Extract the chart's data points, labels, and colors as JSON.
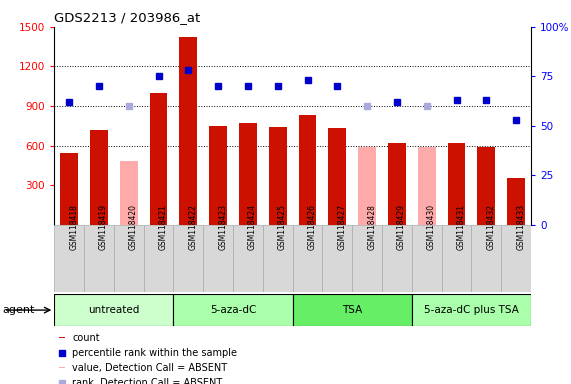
{
  "title": "GDS2213 / 203986_at",
  "samples": [
    "GSM118418",
    "GSM118419",
    "GSM118420",
    "GSM118421",
    "GSM118422",
    "GSM118423",
    "GSM118424",
    "GSM118425",
    "GSM118426",
    "GSM118427",
    "GSM118428",
    "GSM118429",
    "GSM118430",
    "GSM118431",
    "GSM118432",
    "GSM118433"
  ],
  "bar_values": [
    540,
    720,
    480,
    1000,
    1420,
    750,
    770,
    740,
    830,
    730,
    590,
    620,
    590,
    620,
    590,
    350
  ],
  "bar_absent": [
    false,
    false,
    true,
    false,
    false,
    false,
    false,
    false,
    false,
    false,
    true,
    false,
    true,
    false,
    false,
    false
  ],
  "percentile_values": [
    62,
    70,
    60,
    75,
    78,
    70,
    70,
    70,
    73,
    70,
    60,
    62,
    60,
    63,
    63,
    53
  ],
  "rank_absent": [
    false,
    false,
    true,
    false,
    false,
    false,
    false,
    false,
    false,
    false,
    true,
    false,
    true,
    false,
    false,
    false
  ],
  "ylim_left": [
    0,
    1500
  ],
  "ylim_right": [
    0,
    100
  ],
  "yticks_left": [
    300,
    600,
    900,
    1200,
    1500
  ],
  "yticks_right": [
    0,
    25,
    50,
    75,
    100
  ],
  "groups": [
    {
      "label": "untreated",
      "start": 0,
      "end": 3,
      "color": "#ccffcc"
    },
    {
      "label": "5-aza-dC",
      "start": 4,
      "end": 7,
      "color": "#aaffaa"
    },
    {
      "label": "TSA",
      "start": 8,
      "end": 11,
      "color": "#66ee66"
    },
    {
      "label": "5-aza-dC plus TSA",
      "start": 12,
      "end": 15,
      "color": "#aaffaa"
    }
  ],
  "bar_color_present": "#cc1100",
  "bar_color_absent": "#ffaaaa",
  "dot_color_present": "#0000cc",
  "dot_color_absent": "#aaaadd",
  "bg_color": "#d8d8d8",
  "legend_items": [
    {
      "label": "count",
      "color": "#cc1100",
      "type": "bar"
    },
    {
      "label": "percentile rank within the sample",
      "color": "#0000cc",
      "type": "dot"
    },
    {
      "label": "value, Detection Call = ABSENT",
      "color": "#ffaaaa",
      "type": "bar"
    },
    {
      "label": "rank, Detection Call = ABSENT",
      "color": "#aaaadd",
      "type": "dot"
    }
  ]
}
